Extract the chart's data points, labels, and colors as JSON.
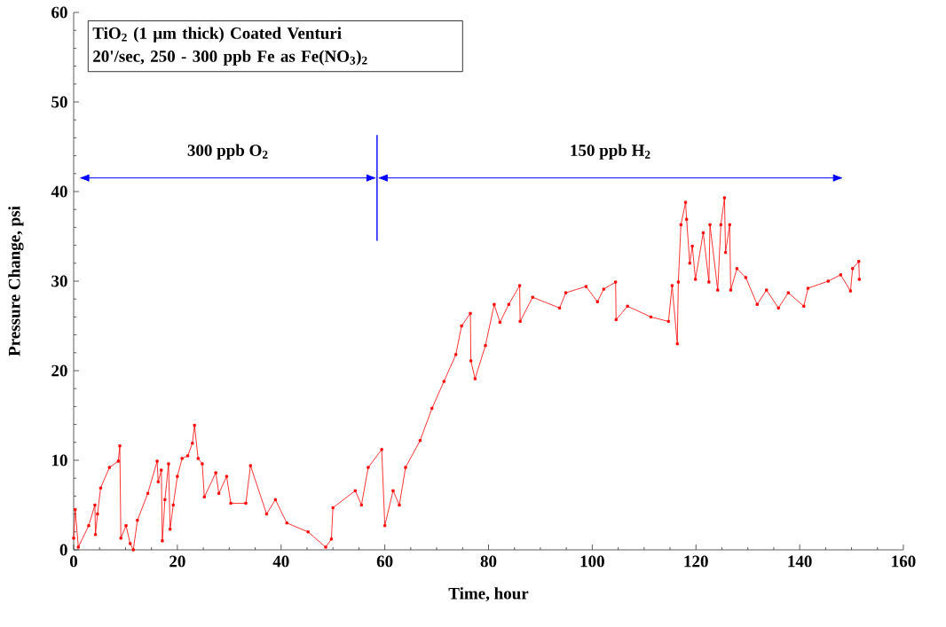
{
  "chart_data": {
    "type": "line",
    "xlabel": "Time, hour",
    "ylabel": "Pressure Change, psi",
    "annotations": [
      "TiO$_{2}$ (1 μm thick) Coated Venturi",
      "20'/sec, 250 - 300 ppb Fe as Fe(NO$_{3}$)$_{2}$",
      "300 ppb O$_{2}$",
      "150 ppb H$_{2}$"
    ],
    "xlim": [
      0,
      160
    ],
    "ylim": [
      0,
      60
    ],
    "xticks": [
      0,
      20,
      40,
      60,
      80,
      100,
      120,
      140,
      160
    ],
    "yticks": [
      0,
      10,
      20,
      30,
      40,
      50,
      60
    ],
    "marker": "square",
    "line_style": "solid",
    "ref_lines": [
      {
        "axis": "x",
        "value": 58.5,
        "color": "#0000ff"
      }
    ],
    "series": [
      {
        "color": "#ff0000",
        "x": [
          0,
          0.3,
          0.9,
          2.9,
          4.1,
          4.2,
          4.6,
          5.2,
          6.9,
          8.6,
          8.9,
          9.1,
          10.1,
          10.9,
          11.5,
          12.3,
          14.3,
          16.1,
          16.3,
          16.9,
          17.1,
          17.6,
          18.3,
          18.6,
          19.2,
          20,
          20.9,
          22,
          22.9,
          23.3,
          24,
          24.8,
          25.2,
          27.4,
          28,
          29.5,
          30.3,
          33.2,
          34.1,
          37.2,
          38.9,
          41.1,
          45.2,
          48.6,
          49.7,
          50,
          54.3,
          55.5,
          56.8,
          59.4,
          60,
          61.6,
          62.8,
          64,
          66.8,
          69.1,
          71.4,
          73.7,
          74.8,
          76.5,
          76.6,
          77.4,
          79.4,
          81.1,
          82.2,
          83.9,
          86,
          86.1,
          88.5,
          93.7,
          94.9,
          98.8,
          101,
          102.2,
          104.5,
          104.6,
          106.8,
          111.3,
          114.7,
          115.4,
          116.4,
          116.6,
          117.1,
          118,
          118.2,
          118.8,
          119.3,
          119.9,
          121.4,
          122.5,
          122.7,
          124.2,
          124.8,
          125.5,
          125.7,
          126.5,
          126.7,
          127.9,
          129.6,
          131.8,
          133.6,
          135.9,
          137.8,
          140.8,
          141.6,
          145.5,
          147.9,
          149.8,
          150.2,
          151.4,
          151.5
        ],
        "values": [
          1.3,
          4.5,
          0.3,
          2.7,
          5,
          1.7,
          4,
          6.9,
          9.2,
          9.9,
          11.6,
          1.3,
          2.7,
          0.7,
          0,
          3.3,
          6.3,
          9.9,
          7.6,
          8.9,
          1,
          5.6,
          9.6,
          2.3,
          5,
          8.2,
          10.2,
          10.5,
          11.9,
          13.9,
          10.2,
          9.6,
          5.9,
          8.6,
          6.3,
          8.2,
          5.2,
          5.2,
          9.4,
          4,
          5.6,
          3,
          2,
          0.3,
          1.2,
          4.7,
          6.6,
          5,
          9.2,
          11.2,
          2.7,
          6.6,
          5,
          9.2,
          12.2,
          15.8,
          18.8,
          21.8,
          25,
          26.4,
          21.1,
          19.1,
          22.8,
          27.4,
          25.4,
          27.4,
          29.5,
          25.5,
          28.2,
          27,
          28.7,
          29.4,
          27.7,
          29.1,
          29.9,
          25.7,
          27.2,
          26,
          25.5,
          29.5,
          23,
          29.9,
          36.3,
          38.8,
          36.9,
          32,
          33.9,
          30.2,
          35.4,
          29.9,
          36.3,
          29,
          36.3,
          39.3,
          33.2,
          36.3,
          29,
          31.4,
          30.4,
          27.4,
          29,
          27,
          28.7,
          27.2,
          29.2,
          30,
          30.7,
          28.9,
          31.4,
          32.2,
          30.2
        ]
      }
    ]
  }
}
